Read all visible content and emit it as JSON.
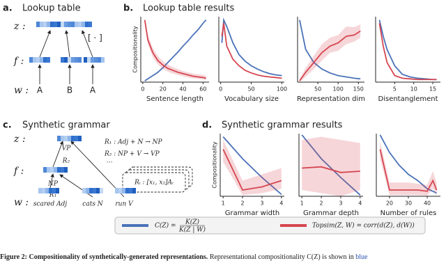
{
  "panels": {
    "a": {
      "label": "a.",
      "title": "Lookup table",
      "rows": [
        "z :",
        "f :",
        "w :"
      ],
      "tokens": [
        "A",
        "B",
        "A"
      ],
      "op": "[ · ]"
    },
    "b": {
      "label": "b.",
      "title": "Lookup table results"
    },
    "c": {
      "label": "c.",
      "title": "Synthetic grammar",
      "rows": [
        "z :",
        "f :",
        "w :"
      ],
      "nodes": [
        "VP",
        "R₂",
        "NP",
        "R₁"
      ],
      "leaves": [
        "scared Adj",
        "cats N",
        "run V"
      ],
      "rules": [
        "R₁ : Adj + N → NP",
        "R₂ : NP + V → VP",
        "⋯"
      ],
      "rule_box": "Rᵢ : [x₁, x₂]Aᵢ"
    },
    "d": {
      "label": "d.",
      "title": "Synthetic grammar results"
    }
  },
  "chart_data": [
    {
      "type": "line",
      "xlabel": "Sentence length",
      "ylabel": "Compositionality",
      "xlim": [
        -2,
        66
      ],
      "xticks": [
        0,
        20,
        40,
        60
      ],
      "ylim": [
        0,
        1
      ],
      "x": [
        2,
        5,
        10,
        15,
        20,
        25,
        30,
        35,
        40,
        45,
        50,
        55,
        60,
        63
      ],
      "series": [
        {
          "color": "#4a72b8",
          "values": [
            0.02,
            0.05,
            0.1,
            0.15,
            0.22,
            0.3,
            0.38,
            0.46,
            0.55,
            0.63,
            0.72,
            0.8,
            0.9,
            0.95
          ]
        },
        {
          "color": "#d64550",
          "values": [
            0.95,
            0.65,
            0.45,
            0.33,
            0.26,
            0.21,
            0.18,
            0.15,
            0.13,
            0.11,
            0.09,
            0.08,
            0.07,
            0.06
          ],
          "lower": [
            0.9,
            0.58,
            0.38,
            0.27,
            0.2,
            0.16,
            0.13,
            0.11,
            0.09,
            0.07,
            0.06,
            0.05,
            0.04,
            0.03
          ],
          "upper": [
            0.98,
            0.72,
            0.52,
            0.4,
            0.32,
            0.27,
            0.23,
            0.2,
            0.17,
            0.15,
            0.13,
            0.12,
            0.11,
            0.1
          ]
        }
      ]
    },
    {
      "type": "line",
      "xlabel": "Vocabulary size",
      "xlim": [
        -3,
        104
      ],
      "xticks": [
        0,
        50,
        100
      ],
      "ylim": [
        0,
        1
      ],
      "x": [
        2,
        5,
        10,
        20,
        30,
        40,
        50,
        60,
        70,
        80,
        90,
        100
      ],
      "series": [
        {
          "color": "#4a72b8",
          "values": [
            0.6,
            0.95,
            0.85,
            0.6,
            0.42,
            0.32,
            0.25,
            0.2,
            0.16,
            0.13,
            0.11,
            0.1
          ]
        },
        {
          "color": "#d64550",
          "values": [
            0.7,
            0.9,
            0.55,
            0.35,
            0.25,
            0.18,
            0.14,
            0.11,
            0.09,
            0.08,
            0.07,
            0.06
          ]
        }
      ]
    },
    {
      "type": "line",
      "xlabel": "Representation dim",
      "xlim": [
        0,
        165
      ],
      "xticks": [
        50,
        100,
        150
      ],
      "ylim": [
        0,
        1
      ],
      "x": [
        5,
        20,
        40,
        60,
        80,
        100,
        120,
        140,
        155
      ],
      "series": [
        {
          "color": "#4a72b8",
          "values": [
            0.95,
            0.5,
            0.3,
            0.2,
            0.14,
            0.1,
            0.08,
            0.06,
            0.05
          ]
        },
        {
          "color": "#d64550",
          "values": [
            0.02,
            0.15,
            0.3,
            0.45,
            0.55,
            0.6,
            0.7,
            0.72,
            0.78
          ],
          "lower": [
            0.0,
            0.08,
            0.2,
            0.33,
            0.45,
            0.48,
            0.58,
            0.62,
            0.68
          ],
          "upper": [
            0.05,
            0.22,
            0.4,
            0.58,
            0.68,
            0.72,
            0.85,
            0.84,
            0.88
          ]
        }
      ]
    },
    {
      "type": "line",
      "xlabel": "Disentanglement",
      "xlim": [
        0,
        17
      ],
      "xticks": [
        5,
        10,
        15
      ],
      "ylim": [
        0,
        1
      ],
      "x": [
        1,
        2,
        3,
        5,
        7,
        9,
        11,
        13,
        15,
        16
      ],
      "series": [
        {
          "color": "#4a72b8",
          "values": [
            0.95,
            0.7,
            0.5,
            0.25,
            0.12,
            0.08,
            0.06,
            0.05,
            0.04,
            0.04
          ]
        },
        {
          "color": "#d64550",
          "values": [
            0.9,
            0.55,
            0.3,
            0.1,
            0.06,
            0.05,
            0.04,
            0.04,
            0.04,
            0.04
          ]
        }
      ]
    },
    {
      "type": "line",
      "xlabel": "Grammar width",
      "ylabel": "Compositionality",
      "xlim": [
        0.85,
        4.15
      ],
      "xticks": [
        1,
        2,
        3,
        4
      ],
      "ylim": [
        0,
        1
      ],
      "x": [
        1,
        2,
        3,
        4
      ],
      "series": [
        {
          "color": "#4a72b8",
          "values": [
            0.95,
            0.6,
            0.3,
            0.03
          ]
        },
        {
          "color": "#d64550",
          "values": [
            0.75,
            0.1,
            0.15,
            0.25
          ],
          "lower": [
            0.55,
            0.02,
            0.05,
            0.12
          ],
          "upper": [
            0.9,
            0.25,
            0.35,
            0.45
          ]
        }
      ]
    },
    {
      "type": "line",
      "xlabel": "Grammar depth",
      "xlim": [
        0.85,
        4.15
      ],
      "xticks": [
        1,
        2,
        3,
        4
      ],
      "ylim": [
        0,
        1
      ],
      "x": [
        1,
        2,
        3,
        4
      ],
      "series": [
        {
          "color": "#4a72b8",
          "values": [
            0.98,
            0.6,
            0.3,
            0.02
          ]
        },
        {
          "color": "#d64550",
          "values": [
            0.45,
            0.47,
            0.38,
            0.4
          ],
          "lower": [
            0.1,
            0.05,
            0.0,
            0.1
          ],
          "upper": [
            0.9,
            0.95,
            0.9,
            0.85
          ]
        }
      ]
    },
    {
      "type": "line",
      "xlabel": "Number of rules",
      "xlim": [
        13,
        47
      ],
      "xticks": [
        20,
        30,
        40
      ],
      "ylim": [
        0,
        1
      ],
      "x": [
        15,
        20,
        25,
        30,
        35,
        40,
        43,
        45
      ],
      "series": [
        {
          "color": "#4a72b8",
          "values": [
            0.98,
            0.7,
            0.5,
            0.35,
            0.25,
            0.12,
            0.08,
            0.05
          ]
        },
        {
          "color": "#d64550",
          "values": [
            0.75,
            0.1,
            0.1,
            0.1,
            0.1,
            0.08,
            0.25,
            0.1
          ],
          "lower": [
            0.6,
            0.02,
            0.02,
            0.02,
            0.02,
            0.01,
            0.12,
            0.02
          ],
          "upper": [
            0.88,
            0.22,
            0.22,
            0.22,
            0.2,
            0.18,
            0.4,
            0.22
          ]
        }
      ]
    }
  ],
  "legend": [
    {
      "color": "#4a72b8",
      "label": "C(Z) =",
      "numerator": "K(Z)",
      "denominator": "K(Z | W)"
    },
    {
      "color": "#d64550",
      "label": "Topsim(Z, W) = corr(d(Z), d(W))"
    }
  ],
  "caption": {
    "lead": "Figure 2: Compositionality of synthetically-generated representations.",
    "text": " Representational compositionality C(Z) is shown in ",
    "highlight": "blue"
  }
}
